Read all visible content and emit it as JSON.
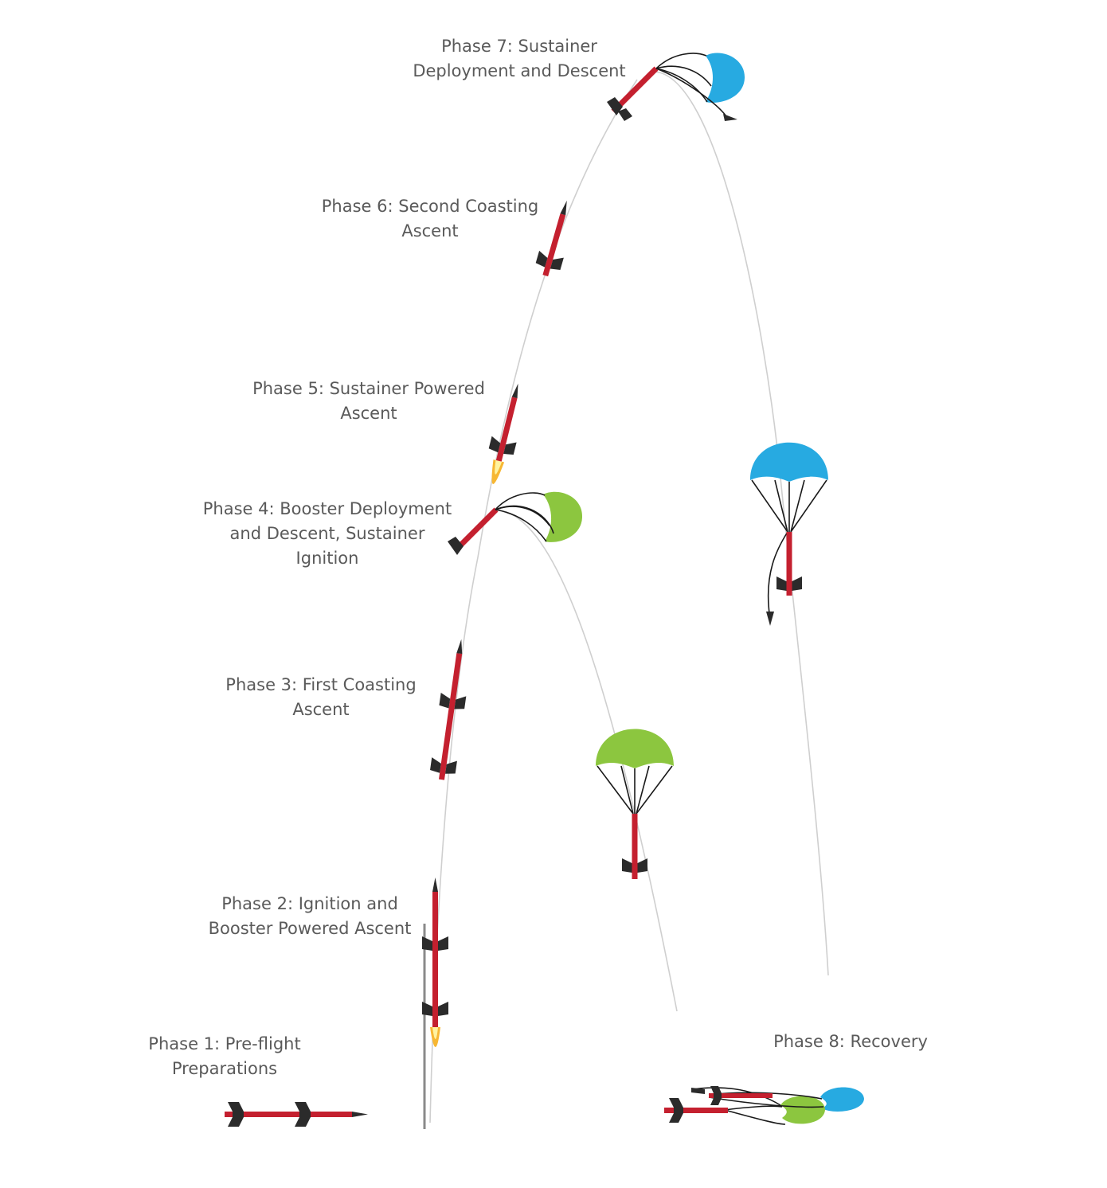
{
  "phases": [
    {
      "id": "phase1",
      "line1": "Phase 1: Pre-flight",
      "line2": "Preparations"
    },
    {
      "id": "phase2",
      "line1": "Phase 2: Ignition and",
      "line2": "Booster Powered Ascent"
    },
    {
      "id": "phase3",
      "line1": "Phase 3: First Coasting",
      "line2": "Ascent"
    },
    {
      "id": "phase4",
      "line1": "Phase 4:  Booster Deployment",
      "line2": "and Descent, Sustainer",
      "line3": "Ignition"
    },
    {
      "id": "phase5",
      "line1": "Phase 5:  Sustainer Powered",
      "line2": "Ascent"
    },
    {
      "id": "phase6",
      "line1": "Phase 6: Second Coasting",
      "line2": "Ascent"
    },
    {
      "id": "phase7",
      "line1": "Phase 7: Sustainer",
      "line2": "Deployment and Descent"
    },
    {
      "id": "phase8",
      "line1": "Phase 8: Recovery"
    }
  ],
  "colors": {
    "rocket_body": "#c4202f",
    "fin": "#2b2b2b",
    "booster_chute": "#8cc63f",
    "sustainer_chute": "#27aae1",
    "flame_outer": "#f7b733",
    "flame_inner": "#fff3a0",
    "trajectory": "#cfcfcf",
    "text": "#5a5a5a"
  },
  "icons": [
    "rocket-icon",
    "parachute-icon",
    "flame-icon",
    "launch-rail-icon"
  ]
}
